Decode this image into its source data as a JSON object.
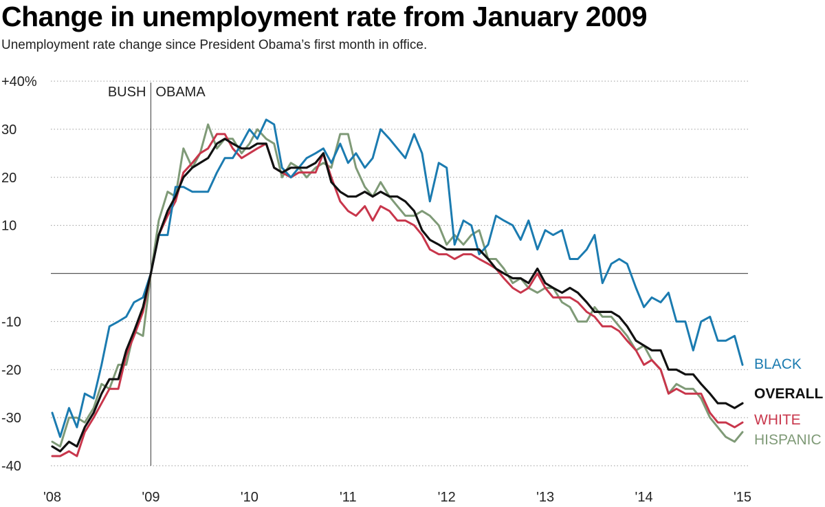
{
  "chart_data": {
    "type": "line",
    "title": "Change in unemployment rate from January 2009",
    "subtitle": "Unemployment rate change since President Obama’s first month in office.",
    "xlabel": "",
    "ylabel": "",
    "xlim": [
      2008.0,
      2015.0
    ],
    "ylim": [
      -40,
      40
    ],
    "y_ticks": [
      {
        "value": 40,
        "label": "+40%"
      },
      {
        "value": 30,
        "label": "30"
      },
      {
        "value": 20,
        "label": "20"
      },
      {
        "value": 10,
        "label": "10"
      },
      {
        "value": -10,
        "label": "-10"
      },
      {
        "value": -20,
        "label": "-20"
      },
      {
        "value": -30,
        "label": "-30"
      },
      {
        "value": -40,
        "label": "-40"
      }
    ],
    "x_ticks": [
      {
        "value": 2008,
        "label": "'08"
      },
      {
        "value": 2009,
        "label": "'09"
      },
      {
        "value": 2010,
        "label": "'10"
      },
      {
        "value": 2011,
        "label": "'11"
      },
      {
        "value": 2012,
        "label": "'12"
      },
      {
        "value": 2013,
        "label": "'13"
      },
      {
        "value": 2014,
        "label": "'14"
      },
      {
        "value": 2015,
        "label": "'15"
      }
    ],
    "grid": "horizontal dotted",
    "legend": "series labels at right end of lines",
    "reference_line": {
      "x": 2009,
      "labels": [
        "BUSH",
        "OBAMA"
      ]
    },
    "series": [
      {
        "name": "HISPANIC",
        "color": "#7f9a77",
        "x": [
          2008.0,
          2008.08,
          2008.17,
          2008.25,
          2008.33,
          2008.42,
          2008.5,
          2008.58,
          2008.67,
          2008.75,
          2008.83,
          2008.92,
          2009.0,
          2009.08,
          2009.17,
          2009.25,
          2009.33,
          2009.42,
          2009.5,
          2009.58,
          2009.67,
          2009.75,
          2009.83,
          2009.92,
          2010.0,
          2010.08,
          2010.17,
          2010.25,
          2010.33,
          2010.42,
          2010.5,
          2010.58,
          2010.67,
          2010.75,
          2010.83,
          2010.92,
          2011.0,
          2011.08,
          2011.17,
          2011.25,
          2011.33,
          2011.42,
          2011.5,
          2011.58,
          2011.67,
          2011.75,
          2011.83,
          2011.92,
          2012.0,
          2012.08,
          2012.17,
          2012.25,
          2012.33,
          2012.42,
          2012.5,
          2012.58,
          2012.67,
          2012.75,
          2012.83,
          2012.92,
          2013.0,
          2013.08,
          2013.17,
          2013.25,
          2013.33,
          2013.42,
          2013.5,
          2013.58,
          2013.67,
          2013.75,
          2013.83,
          2013.92,
          2014.0,
          2014.08,
          2014.17,
          2014.25,
          2014.33,
          2014.42,
          2014.5,
          2014.58,
          2014.67,
          2014.75,
          2014.83,
          2014.92,
          2015.0
        ],
        "values": [
          -35,
          -36,
          -30,
          -30,
          -31,
          -28,
          -23,
          -24,
          -19,
          -19,
          -12,
          -13,
          0,
          11,
          17,
          16,
          26,
          22,
          25,
          31,
          26,
          28,
          28,
          25,
          27,
          30,
          28,
          27,
          20,
          23,
          22,
          20,
          22,
          23,
          22,
          29,
          29,
          22,
          18,
          16,
          19,
          16,
          14,
          12,
          12,
          13,
          12,
          10,
          6,
          8,
          6,
          8,
          9,
          3,
          3,
          1,
          -2,
          -1,
          -3,
          -4,
          -3,
          -3,
          -6,
          -7,
          -10,
          -10,
          -7,
          -9,
          -9,
          -11,
          -13,
          -16,
          -15,
          -18,
          -20,
          -25,
          -23,
          -24,
          -24,
          -26,
          -30,
          -32,
          -34,
          -35,
          -33
        ]
      },
      {
        "name": "WHITE",
        "color": "#c8364b",
        "x": [
          2008.0,
          2008.08,
          2008.17,
          2008.25,
          2008.33,
          2008.42,
          2008.5,
          2008.58,
          2008.67,
          2008.75,
          2008.83,
          2008.92,
          2009.0,
          2009.08,
          2009.17,
          2009.25,
          2009.33,
          2009.42,
          2009.5,
          2009.58,
          2009.67,
          2009.75,
          2009.83,
          2009.92,
          2010.0,
          2010.08,
          2010.17,
          2010.25,
          2010.33,
          2010.42,
          2010.5,
          2010.58,
          2010.67,
          2010.75,
          2010.83,
          2010.92,
          2011.0,
          2011.08,
          2011.17,
          2011.25,
          2011.33,
          2011.42,
          2011.5,
          2011.58,
          2011.67,
          2011.75,
          2011.83,
          2011.92,
          2012.0,
          2012.08,
          2012.17,
          2012.25,
          2012.33,
          2012.42,
          2012.5,
          2012.58,
          2012.67,
          2012.75,
          2012.83,
          2012.92,
          2013.0,
          2013.08,
          2013.17,
          2013.25,
          2013.33,
          2013.42,
          2013.5,
          2013.58,
          2013.67,
          2013.75,
          2013.83,
          2013.92,
          2014.0,
          2014.08,
          2014.17,
          2014.25,
          2014.33,
          2014.42,
          2014.5,
          2014.58,
          2014.67,
          2014.75,
          2014.83,
          2014.92,
          2015.0
        ],
        "values": [
          -38,
          -38,
          -37,
          -38,
          -33,
          -30,
          -27,
          -24,
          -24,
          -17,
          -13,
          -8,
          0,
          8,
          12,
          15,
          21,
          23,
          25,
          26,
          29,
          29,
          26,
          24,
          25,
          26,
          27,
          22,
          21,
          20,
          21,
          21,
          21,
          25,
          20,
          15,
          13,
          12,
          14,
          11,
          14,
          13,
          11,
          11,
          10,
          8,
          5,
          4,
          4,
          3,
          4,
          4,
          3,
          2,
          1,
          -1,
          -3,
          -4,
          -3,
          0,
          -3,
          -5,
          -5,
          -5,
          -6,
          -8,
          -9,
          -11,
          -11,
          -12,
          -14,
          -16,
          -19,
          -18,
          -20,
          -25,
          -24,
          -25,
          -25,
          -25,
          -29,
          -31,
          -31,
          -32,
          -31
        ]
      },
      {
        "name": "BLACK",
        "color": "#1b7bb0",
        "x": [
          2008.0,
          2008.08,
          2008.17,
          2008.25,
          2008.33,
          2008.42,
          2008.5,
          2008.58,
          2008.67,
          2008.75,
          2008.83,
          2008.92,
          2009.0,
          2009.08,
          2009.17,
          2009.25,
          2009.33,
          2009.42,
          2009.5,
          2009.58,
          2009.67,
          2009.75,
          2009.83,
          2009.92,
          2010.0,
          2010.08,
          2010.17,
          2010.25,
          2010.33,
          2010.42,
          2010.5,
          2010.58,
          2010.67,
          2010.75,
          2010.83,
          2010.92,
          2011.0,
          2011.08,
          2011.17,
          2011.25,
          2011.33,
          2011.42,
          2011.5,
          2011.58,
          2011.67,
          2011.75,
          2011.83,
          2011.92,
          2012.0,
          2012.08,
          2012.17,
          2012.25,
          2012.33,
          2012.42,
          2012.5,
          2012.58,
          2012.67,
          2012.75,
          2012.83,
          2012.92,
          2013.0,
          2013.08,
          2013.17,
          2013.25,
          2013.33,
          2013.42,
          2013.5,
          2013.58,
          2013.67,
          2013.75,
          2013.83,
          2013.92,
          2014.0,
          2014.08,
          2014.17,
          2014.25,
          2014.33,
          2014.42,
          2014.5,
          2014.58,
          2014.67,
          2014.75,
          2014.83,
          2014.92,
          2015.0
        ],
        "values": [
          -29,
          -34,
          -28,
          -32,
          -25,
          -26,
          -19,
          -11,
          -10,
          -9,
          -6,
          -5,
          0,
          8,
          8,
          18,
          18,
          17,
          17,
          17,
          21,
          24,
          24,
          27,
          30,
          28,
          32,
          31,
          22,
          20,
          22,
          24,
          25,
          26,
          23,
          27,
          23,
          25,
          22,
          24,
          30,
          28,
          26,
          24,
          29,
          25,
          15,
          23,
          22,
          6,
          11,
          10,
          4,
          6,
          12,
          11,
          10,
          7,
          11,
          5,
          9,
          8,
          9,
          3,
          3,
          5,
          8,
          -2,
          2,
          3,
          2,
          -3,
          -7,
          -5,
          -6,
          -4,
          -10,
          -10,
          -16,
          -10,
          -9,
          -14,
          -14,
          -13,
          -19
        ]
      },
      {
        "name": "OVERALL",
        "color": "#111111",
        "x": [
          2008.0,
          2008.08,
          2008.17,
          2008.25,
          2008.33,
          2008.42,
          2008.5,
          2008.58,
          2008.67,
          2008.75,
          2008.83,
          2008.92,
          2009.0,
          2009.08,
          2009.17,
          2009.25,
          2009.33,
          2009.42,
          2009.5,
          2009.58,
          2009.67,
          2009.75,
          2009.83,
          2009.92,
          2010.0,
          2010.08,
          2010.17,
          2010.25,
          2010.33,
          2010.42,
          2010.5,
          2010.58,
          2010.67,
          2010.75,
          2010.83,
          2010.92,
          2011.0,
          2011.08,
          2011.17,
          2011.25,
          2011.33,
          2011.42,
          2011.5,
          2011.58,
          2011.67,
          2011.75,
          2011.83,
          2011.92,
          2012.0,
          2012.08,
          2012.17,
          2012.25,
          2012.33,
          2012.42,
          2012.5,
          2012.58,
          2012.67,
          2012.75,
          2012.83,
          2012.92,
          2013.0,
          2013.08,
          2013.17,
          2013.25,
          2013.33,
          2013.42,
          2013.5,
          2013.58,
          2013.67,
          2013.75,
          2013.83,
          2013.92,
          2014.0,
          2014.08,
          2014.17,
          2014.25,
          2014.33,
          2014.42,
          2014.5,
          2014.58,
          2014.67,
          2014.75,
          2014.83,
          2014.92,
          2015.0
        ],
        "values": [
          -36,
          -37,
          -35,
          -36,
          -32,
          -29,
          -25,
          -22,
          -22,
          -16,
          -12,
          -7,
          0,
          8,
          13,
          16,
          20,
          22,
          23,
          24,
          27,
          28,
          27,
          26,
          26,
          27,
          27,
          22,
          21,
          22,
          22,
          22,
          23,
          25,
          19,
          17,
          16,
          16,
          17,
          16,
          17,
          16,
          16,
          15,
          13,
          9,
          7,
          6,
          5,
          5,
          5,
          5,
          5,
          3,
          1,
          0,
          -1,
          -1,
          -2,
          1,
          -2,
          -3,
          -4,
          -3,
          -4,
          -6,
          -8,
          -8,
          -8,
          -9,
          -11,
          -14,
          -15,
          -16,
          -16,
          -20,
          -20,
          -21,
          -21,
          -23,
          -25,
          -27,
          -27,
          -28,
          -27
        ]
      }
    ]
  }
}
